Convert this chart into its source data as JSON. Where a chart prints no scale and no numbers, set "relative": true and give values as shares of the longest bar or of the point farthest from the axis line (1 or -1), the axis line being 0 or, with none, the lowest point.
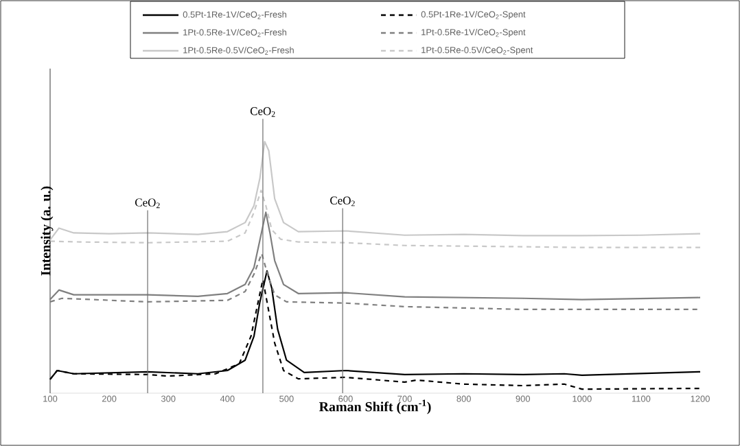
{
  "chart_data": {
    "type": "line",
    "relative": true,
    "xlabel": "Raman Shift (cm$^{-1}$)",
    "ylabel": "Intensity (a. u.)",
    "xlim": [
      100,
      1200
    ],
    "xticks": [
      100,
      200,
      300,
      400,
      500,
      600,
      700,
      800,
      900,
      1000,
      1100,
      1200
    ],
    "legend": "top",
    "marker": "none",
    "grid": false,
    "series": [
      {
        "name": "0.5Pt-1Re-1V/CeO$_{2}$-Fresh",
        "color": "#000000",
        "line_style": "solid",
        "x": [
          100,
          112,
          140,
          265,
          350,
          400,
          430,
          445,
          455,
          467,
          475,
          485,
          500,
          530,
          600,
          700,
          800,
          900,
          970,
          1000,
          1200
        ],
        "values": [
          0.055,
          0.09,
          0.077,
          0.085,
          0.077,
          0.09,
          0.131,
          0.227,
          0.363,
          0.486,
          0.418,
          0.254,
          0.131,
          0.082,
          0.09,
          0.074,
          0.077,
          0.074,
          0.077,
          0.071,
          0.085
        ]
      },
      {
        "name": "0.5Pt-1Re-1V/CeO$_{2}$-Spent",
        "color": "#000000",
        "line_style": "dashed",
        "x": [
          100,
          112,
          140,
          265,
          300,
          380,
          420,
          440,
          452,
          460,
          467,
          480,
          495,
          520,
          600,
          700,
          720,
          800,
          900,
          970,
          1000,
          1200
        ],
        "values": [
          0.055,
          0.09,
          0.077,
          0.074,
          0.068,
          0.077,
          0.117,
          0.227,
          0.363,
          0.451,
          0.363,
          0.199,
          0.09,
          0.057,
          0.063,
          0.044,
          0.052,
          0.036,
          0.03,
          0.036,
          0.016,
          0.019
        ]
      },
      {
        "name": "1Pt-0.5Re-1V/CeO$_{2}$-Fresh",
        "color": "#7f7f7f",
        "line_style": "solid",
        "x": [
          100,
          115,
          140,
          265,
          350,
          400,
          430,
          445,
          455,
          465,
          472,
          480,
          495,
          520,
          600,
          700,
          900,
          1000,
          1200
        ],
        "values": [
          0.372,
          0.41,
          0.391,
          0.391,
          0.385,
          0.396,
          0.432,
          0.5,
          0.609,
          0.719,
          0.637,
          0.527,
          0.432,
          0.396,
          0.399,
          0.383,
          0.377,
          0.372,
          0.38
        ]
      },
      {
        "name": "1Pt-0.5Re-1V/CeO$_{2}$-Spent",
        "color": "#7f7f7f",
        "line_style": "dashed",
        "x": [
          100,
          120,
          265,
          400,
          430,
          445,
          458,
          468,
          480,
          500,
          600,
          700,
          900,
          1200
        ],
        "values": [
          0.363,
          0.377,
          0.363,
          0.369,
          0.404,
          0.473,
          0.555,
          0.473,
          0.391,
          0.363,
          0.358,
          0.344,
          0.333,
          0.333
        ]
      },
      {
        "name": "1Pt-0.5Re-0.5V/CeO$_{2}$-Fresh",
        "color": "#c8c8c8",
        "line_style": "solid",
        "x": [
          100,
          115,
          140,
          200,
          265,
          350,
          400,
          430,
          445,
          455,
          463,
          470,
          480,
          495,
          520,
          600,
          700,
          800,
          900,
          1000,
          1100,
          1200
        ],
        "values": [
          0.609,
          0.656,
          0.637,
          0.634,
          0.637,
          0.631,
          0.642,
          0.678,
          0.746,
          0.855,
          1.0,
          0.964,
          0.773,
          0.678,
          0.642,
          0.645,
          0.628,
          0.631,
          0.626,
          0.626,
          0.628,
          0.634
        ]
      },
      {
        "name": "1Pt-0.5Re-0.5V/CeO$_{2}$-Spent",
        "color": "#c8c8c8",
        "line_style": "dashed",
        "x": [
          100,
          150,
          265,
          400,
          430,
          445,
          457,
          465,
          475,
          490,
          520,
          600,
          700,
          900,
          1000,
          1200
        ],
        "values": [
          0.604,
          0.601,
          0.598,
          0.604,
          0.637,
          0.719,
          0.806,
          0.746,
          0.65,
          0.612,
          0.601,
          0.598,
          0.587,
          0.582,
          0.579,
          0.579
        ]
      }
    ],
    "ref_lines": [
      {
        "axis": "x",
        "value": 265,
        "label": "CeO$_{2}$",
        "color": "#6d6d6d"
      },
      {
        "axis": "x",
        "value": 460,
        "label": "CeO$_{2}$",
        "color": "#6d6d6d"
      },
      {
        "axis": "x",
        "value": 595,
        "label": "CeO$_{2}$",
        "color": "#6d6d6d"
      }
    ]
  }
}
